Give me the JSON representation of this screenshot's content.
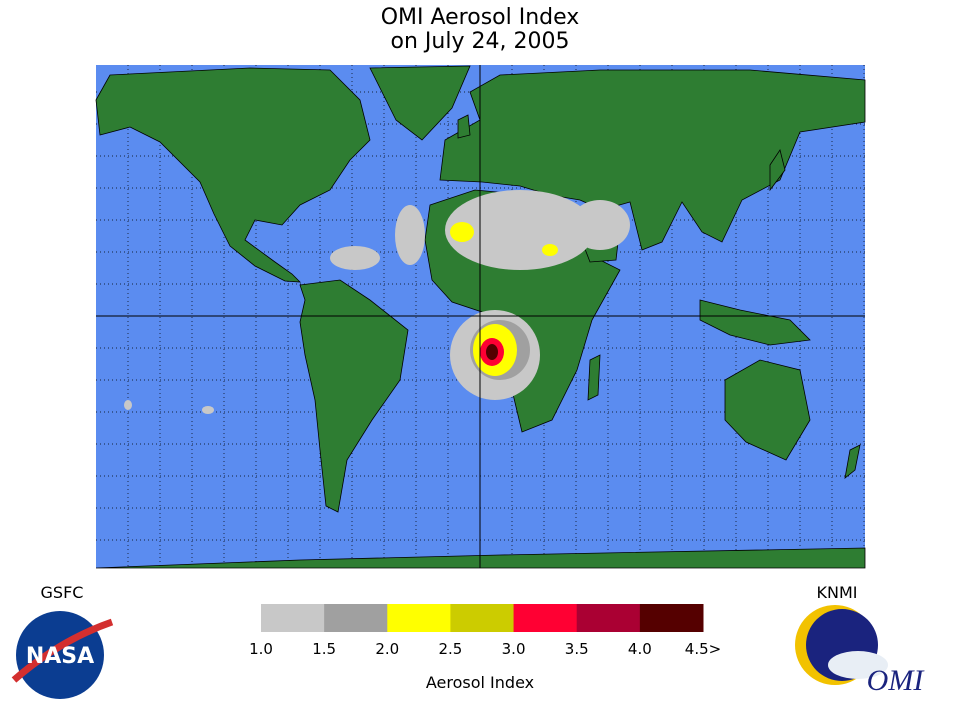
{
  "header": {
    "title": [
      "OMI Aerosol Index",
      "on July 24, 2005"
    ]
  },
  "logos": {
    "left": {
      "caption": "GSFC",
      "text": "NASA"
    },
    "right": {
      "caption": "KNMI",
      "text": "OMI"
    }
  },
  "colorbar": {
    "labels": [
      "1.0",
      "1.5",
      "2.0",
      "2.5",
      "3.0",
      "3.5",
      "4.0",
      "4.5>"
    ],
    "colors": [
      "#c8c8c8",
      "#a0a0a0",
      "#ffff00",
      "#cccc00",
      "#ff0033",
      "#aa0033",
      "#550000"
    ],
    "title": "Aerosol Index"
  }
}
